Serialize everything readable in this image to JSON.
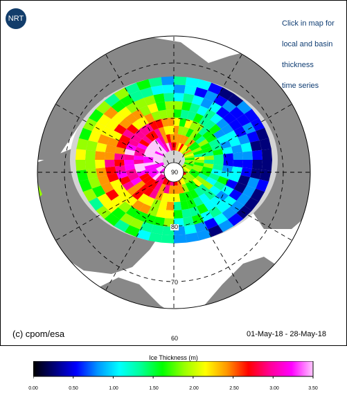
{
  "badge": {
    "label": "NRT"
  },
  "hint_lines": [
    "Click in map for",
    "local and basin",
    "thickness",
    "time series"
  ],
  "copyright": "(c) cpom/esa",
  "date_range": "01-May-18 - 28-May-18",
  "map_labels": {
    "pole": "90",
    "lat80": "80",
    "lat70": "70",
    "lat60": "60"
  },
  "colors": {
    "land": "#888888",
    "ocean": "#ffffff",
    "open_water_region": "#ffffff",
    "no_data_ice": "#d4d4d4",
    "grid": "#000000",
    "badge": "#123d6b",
    "hint_text": "#0f3d73"
  },
  "legend": {
    "title": "Ice Thickness (m)",
    "ticks": [
      "0.00",
      "0.50",
      "1.00",
      "1.50",
      "2.00",
      "2.50",
      "3.00",
      "3.50"
    ],
    "range": [
      0,
      3.5
    ],
    "colormap": [
      "#000000",
      "#00007a",
      "#0000ff",
      "#0096ff",
      "#00ffff",
      "#00ff96",
      "#00ff00",
      "#96ff00",
      "#ffff00",
      "#ff9600",
      "#ff0000",
      "#ff0096",
      "#ff00ff",
      "#ffc8ff"
    ]
  }
}
